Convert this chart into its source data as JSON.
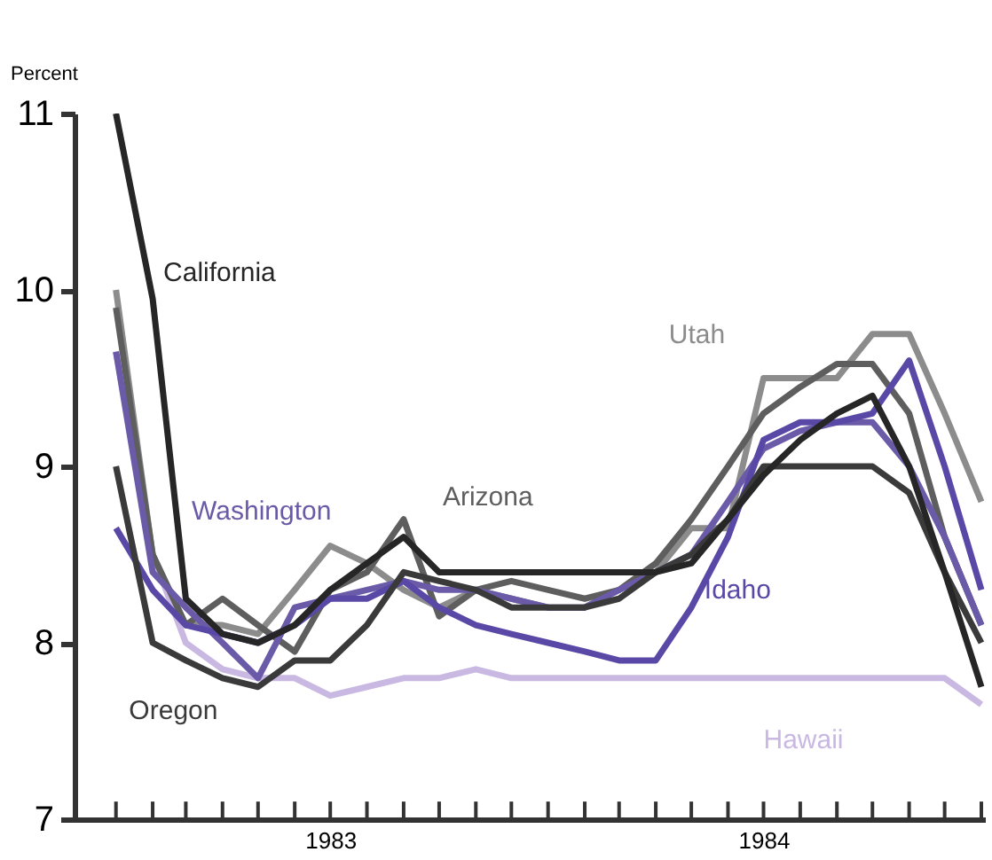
{
  "chart_data": {
    "type": "line",
    "ylabel": "Percent",
    "x": [
      "1983-01",
      "1983-02",
      "1983-03",
      "1983-04",
      "1983-05",
      "1983-06",
      "1983-07",
      "1983-08",
      "1983-09",
      "1983-10",
      "1983-11",
      "1983-12",
      "1984-01",
      "1984-02",
      "1984-03",
      "1984-04",
      "1984-05",
      "1984-06",
      "1984-07",
      "1984-08",
      "1984-09",
      "1984-10",
      "1984-11",
      "1984-12",
      "1985-01"
    ],
    "xlim": [
      "1982-11-27",
      "1985-01-04"
    ],
    "xticks": [
      {
        "value": "1983-01",
        "label": null
      },
      {
        "value": "1983-02",
        "label": null
      },
      {
        "value": "1983-03",
        "label": null
      },
      {
        "value": "1983-04",
        "label": null
      },
      {
        "value": "1983-05",
        "label": null
      },
      {
        "value": "1983-06",
        "label": null
      },
      {
        "value": "1983-07",
        "label": "1983"
      },
      {
        "value": "1983-08",
        "label": null
      },
      {
        "value": "1983-09",
        "label": null
      },
      {
        "value": "1983-10",
        "label": null
      },
      {
        "value": "1983-11",
        "label": null
      },
      {
        "value": "1983-12",
        "label": null
      },
      {
        "value": "1984-01",
        "label": null
      },
      {
        "value": "1984-02",
        "label": null
      },
      {
        "value": "1984-03",
        "label": null
      },
      {
        "value": "1984-04",
        "label": null
      },
      {
        "value": "1984-05",
        "label": null
      },
      {
        "value": "1984-06",
        "label": null
      },
      {
        "value": "1984-07",
        "label": "1984"
      },
      {
        "value": "1984-08",
        "label": null
      },
      {
        "value": "1984-09",
        "label": null
      },
      {
        "value": "1984-10",
        "label": null
      },
      {
        "value": "1984-11",
        "label": null
      },
      {
        "value": "1984-12",
        "label": null
      },
      {
        "value": "1985-01",
        "label": null
      }
    ],
    "ylim": [
      7,
      11
    ],
    "yticks": [
      7,
      8,
      9,
      10,
      11
    ],
    "grid": false,
    "marker": "none",
    "line_style": "solid",
    "series": [
      {
        "name": "Hawaii",
        "color": "#c9b8e2",
        "values": [
          9.65,
          8.5,
          8.0,
          7.85,
          7.8,
          7.8,
          7.7,
          7.75,
          7.8,
          7.8,
          7.85,
          7.8,
          7.8,
          7.8,
          7.8,
          7.8,
          7.8,
          7.8,
          7.8,
          7.8,
          7.8,
          7.8,
          7.8,
          7.8,
          7.65
        ]
      },
      {
        "name": "Utah",
        "color": "#8c8c8c",
        "values": [
          10.0,
          8.5,
          8.1,
          8.1,
          8.05,
          8.3,
          8.55,
          8.45,
          8.3,
          8.2,
          8.3,
          8.25,
          8.2,
          8.2,
          8.3,
          8.4,
          8.65,
          8.65,
          9.5,
          9.5,
          9.5,
          9.75,
          9.75,
          9.3,
          8.8
        ]
      },
      {
        "name": "Arizona",
        "color": "#5e5e5e",
        "values": [
          9.9,
          8.5,
          8.1,
          8.25,
          8.1,
          7.95,
          8.3,
          8.4,
          8.7,
          8.15,
          8.3,
          8.35,
          8.3,
          8.25,
          8.3,
          8.45,
          8.7,
          9.0,
          9.3,
          9.45,
          9.58,
          9.58,
          9.3,
          8.6,
          8.1
        ]
      },
      {
        "name": "Washington",
        "color": "#6a5aa8",
        "values": [
          9.65,
          8.4,
          8.2,
          8.0,
          7.8,
          8.2,
          8.25,
          8.3,
          8.35,
          8.3,
          8.3,
          8.25,
          8.2,
          8.2,
          8.3,
          8.4,
          8.5,
          8.8,
          9.1,
          9.2,
          9.25,
          9.25,
          9.0,
          8.6,
          8.1
        ]
      },
      {
        "name": "Idaho",
        "color": "#5a48a6",
        "values": [
          8.65,
          8.3,
          8.1,
          8.05,
          8.0,
          8.1,
          8.25,
          8.25,
          8.35,
          8.2,
          8.1,
          8.05,
          8.0,
          7.95,
          7.9,
          7.9,
          8.2,
          8.6,
          9.15,
          9.25,
          9.25,
          9.3,
          9.6,
          9.0,
          8.3
        ]
      },
      {
        "name": "Oregon",
        "color": "#3a3a3a",
        "values": [
          9.0,
          8.0,
          7.9,
          7.8,
          7.75,
          7.9,
          7.9,
          8.1,
          8.4,
          8.35,
          8.3,
          8.2,
          8.2,
          8.2,
          8.25,
          8.4,
          8.5,
          8.7,
          9.0,
          9.0,
          9.0,
          9.0,
          8.85,
          8.4,
          8.0
        ]
      },
      {
        "name": "California",
        "color": "#262626",
        "values": [
          11.0,
          9.95,
          8.25,
          8.05,
          8.0,
          8.1,
          8.3,
          8.45,
          8.6,
          8.4,
          8.4,
          8.4,
          8.4,
          8.4,
          8.4,
          8.4,
          8.45,
          8.7,
          8.95,
          9.15,
          9.3,
          9.4,
          9.0,
          8.4,
          7.75
        ]
      }
    ]
  }
}
